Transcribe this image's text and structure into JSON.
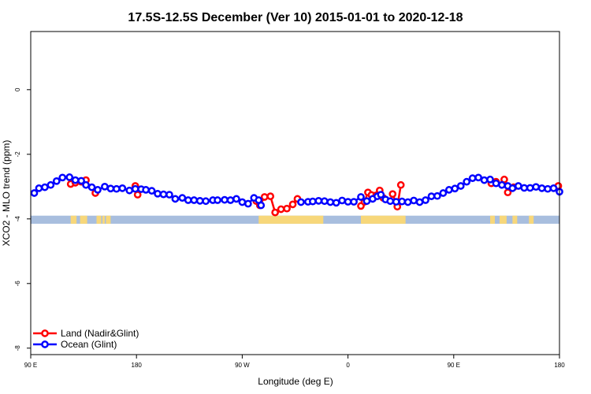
{
  "chart_data": {
    "type": "line",
    "title": "17.5S-12.5S December (Ver 10)   2015-01-01 to 2020-12-18",
    "xlabel": "Longitude (deg E)",
    "ylabel": "XCO2 - MLO trend (ppm)",
    "x_ticks": [
      "90 E",
      "180",
      "90 W",
      "0",
      "90 E",
      "180"
    ],
    "y_ticks": [
      "0",
      "-2",
      "-4",
      "-6",
      "-8"
    ],
    "x_tick_values": [
      90,
      180,
      270,
      360,
      450,
      540
    ],
    "y_tick_values": [
      0,
      -2,
      -4,
      -6,
      -8
    ],
    "xlim": [
      90,
      540
    ],
    "ylim": [
      -8.2,
      1.8
    ],
    "grid": false,
    "legend_position": "bottom-left",
    "land_band": {
      "y_top": -3.9,
      "y_bottom": -4.15,
      "ocean_color": "#a8bede",
      "land_color": "#f7d77a",
      "land_segments": [
        [
          124,
          129
        ],
        [
          132,
          138
        ],
        [
          146,
          150
        ],
        [
          154,
          158
        ],
        [
          151,
          153
        ],
        [
          284,
          339
        ],
        [
          371,
          409
        ],
        [
          481,
          485
        ],
        [
          489,
          495
        ],
        [
          500,
          504
        ],
        [
          514,
          518
        ]
      ]
    },
    "series": [
      {
        "name": "Land (Nadir&Glint)",
        "color": "#ff0000",
        "segments": [
          {
            "x": [
              124,
              128,
              133,
              137
            ],
            "y": [
              -2.92,
              -2.88,
              -2.85,
              -2.8
            ]
          },
          {
            "x": [
              145
            ],
            "y": [
              -3.2
            ]
          },
          {
            "x": [
              179,
              181
            ],
            "y": [
              -2.98,
              -3.25
            ]
          },
          {
            "x": [
              282,
              285,
              289,
              294,
              298,
              303,
              308,
              313,
              317
            ],
            "y": [
              -3.45,
              -3.58,
              -3.32,
              -3.3,
              -3.8,
              -3.7,
              -3.68,
              -3.55,
              -3.38
            ]
          },
          {
            "x": [
              371,
              374,
              377,
              380,
              384,
              387,
              390
            ],
            "y": [
              -3.6,
              -3.47,
              -3.18,
              -3.26,
              -3.27,
              -3.12,
              -3.35
            ]
          },
          {
            "x": [
              398,
              402,
              405
            ],
            "y": [
              -3.23,
              -3.62,
              -2.95
            ]
          },
          {
            "x": [
              482,
              486
            ],
            "y": [
              -2.9,
              -2.85
            ]
          },
          {
            "x": [
              493,
              496,
              501
            ],
            "y": [
              -2.78,
              -3.18,
              -3.02
            ]
          },
          {
            "x": [
              539
            ],
            "y": [
              -2.98
            ]
          }
        ]
      },
      {
        "name": "Ocean (Glint)",
        "color": "#0000ff",
        "segments": [
          {
            "x": [
              93,
              97,
              102,
              107,
              112,
              117,
              123,
              128,
              133,
              137,
              142,
              147,
              153,
              158,
              163,
              168,
              174,
              179,
              184,
              188,
              193,
              198,
              203,
              208,
              213,
              219,
              224,
              229,
              234,
              239,
              245,
              249,
              255,
              260,
              265,
              270,
              275,
              280,
              284
            ],
            "y": [
              -3.2,
              -3.05,
              -3.02,
              -2.95,
              -2.83,
              -2.72,
              -2.71,
              -2.8,
              -2.82,
              -2.95,
              -3.02,
              -3.1,
              -3.0,
              -3.06,
              -3.07,
              -3.05,
              -3.12,
              -3.07,
              -3.08,
              -3.1,
              -3.13,
              -3.22,
              -3.24,
              -3.25,
              -3.38,
              -3.35,
              -3.42,
              -3.42,
              -3.44,
              -3.45,
              -3.42,
              -3.42,
              -3.41,
              -3.42,
              -3.38,
              -3.48,
              -3.53,
              -3.35,
              -3.42
            ]
          },
          {
            "x": [
              286
            ],
            "y": [
              -3.58
            ]
          },
          {
            "x": [
              320,
              326,
              330,
              335,
              340,
              345,
              350,
              355,
              360,
              365,
              371,
              376,
              381,
              385,
              388,
              392,
              396,
              401,
              406,
              411,
              416,
              421,
              426,
              431,
              436,
              441,
              446,
              451,
              456,
              461,
              466,
              471,
              476,
              481,
              486,
              491,
              496,
              500,
              505,
              510,
              515,
              520,
              525,
              530,
              535,
              540
            ],
            "y": [
              -3.48,
              -3.47,
              -3.46,
              -3.44,
              -3.45,
              -3.48,
              -3.5,
              -3.43,
              -3.47,
              -3.47,
              -3.32,
              -3.45,
              -3.38,
              -3.3,
              -3.25,
              -3.4,
              -3.45,
              -3.47,
              -3.46,
              -3.48,
              -3.43,
              -3.48,
              -3.42,
              -3.3,
              -3.29,
              -3.2,
              -3.1,
              -3.06,
              -2.98,
              -2.85,
              -2.74,
              -2.72,
              -2.8,
              -2.78,
              -2.9,
              -2.95,
              -2.98,
              -3.05,
              -2.98,
              -3.04,
              -3.04,
              -3.01,
              -3.05,
              -3.07,
              -3.05,
              -3.16
            ]
          }
        ]
      }
    ]
  }
}
